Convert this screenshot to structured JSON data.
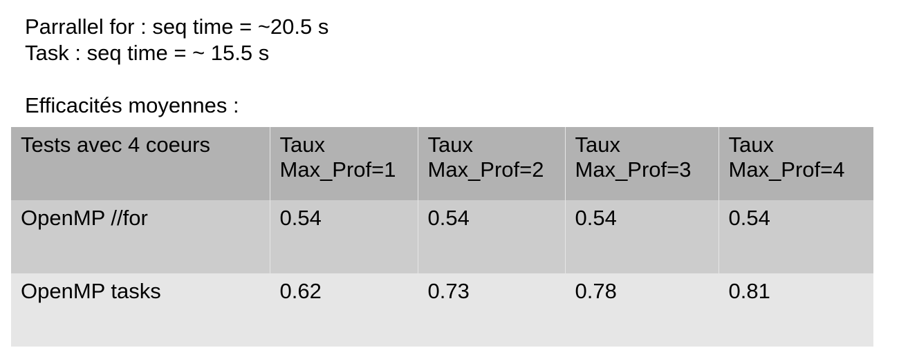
{
  "intro": {
    "line1": "Parrallel for : seq time = ~20.5 s",
    "line2": "Task : seq time = ~ 15.5 s",
    "heading": "Efficacités moyennes :"
  },
  "table": {
    "header": {
      "first": "Tests avec 4 coeurs",
      "cols": [
        {
          "line1": "Taux",
          "line2": "Max_Prof=1"
        },
        {
          "line1": "Taux",
          "line2": "Max_Prof=2"
        },
        {
          "line1": "Taux",
          "line2": "Max_Prof=3"
        },
        {
          "line1": "Taux",
          "line2": "Max_Prof=4"
        }
      ]
    },
    "rows": [
      {
        "label": "OpenMP //for",
        "values": [
          "0.54",
          "0.54",
          "0.54",
          "0.54"
        ]
      },
      {
        "label": "OpenMP tasks",
        "values": [
          "0.62",
          "0.73",
          "0.78",
          "0.81"
        ]
      }
    ]
  },
  "colors": {
    "header_bg": "#b2b2b2",
    "row1_bg": "#cccccc",
    "row2_bg": "#e6e6e6"
  }
}
